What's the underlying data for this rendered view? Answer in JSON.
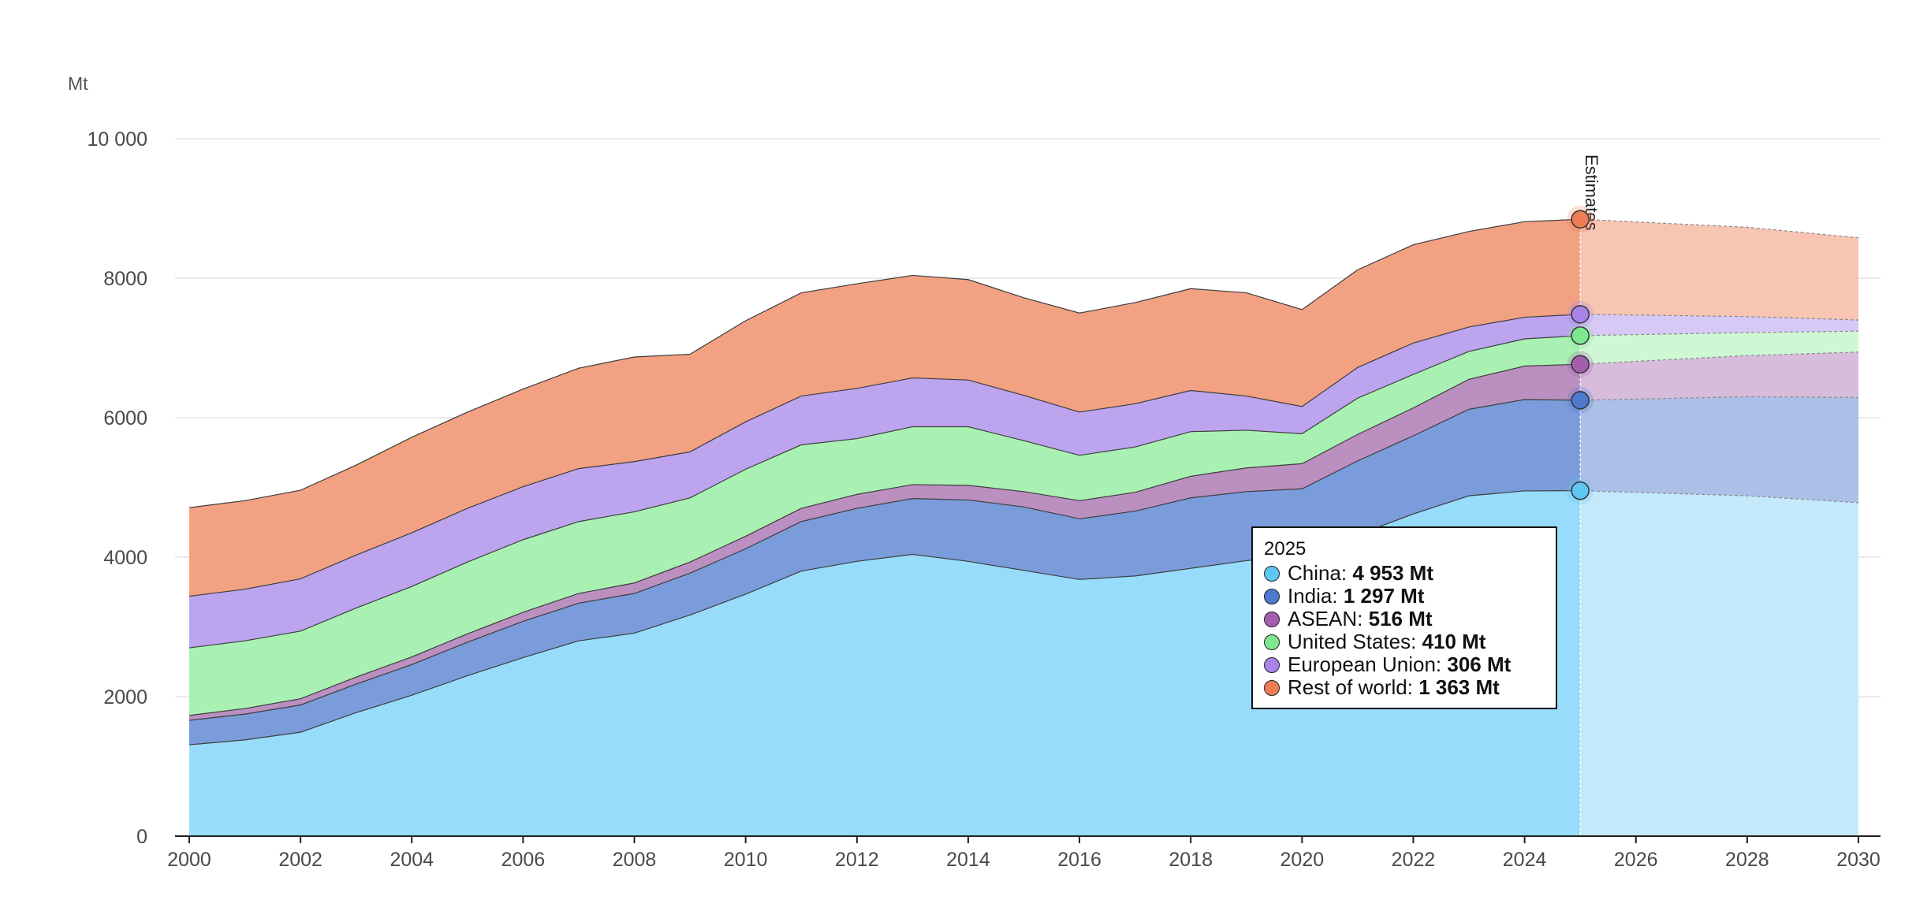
{
  "chart_data": {
    "type": "area",
    "stacked": true,
    "unit_label": "Mt",
    "x": [
      2000,
      2001,
      2002,
      2003,
      2004,
      2005,
      2006,
      2007,
      2008,
      2009,
      2010,
      2011,
      2012,
      2013,
      2014,
      2015,
      2016,
      2017,
      2018,
      2019,
      2020,
      2021,
      2022,
      2023,
      2024,
      2025
    ],
    "x_projection": [
      2025,
      2028,
      2030
    ],
    "xlim": [
      2000,
      2030
    ],
    "x_ticks": [
      "2000",
      "2002",
      "2004",
      "2006",
      "2008",
      "2010",
      "2012",
      "2014",
      "2016",
      "2018",
      "2020",
      "2022",
      "2024",
      "2026",
      "2028",
      "2030"
    ],
    "ylim": [
      0,
      10000
    ],
    "y_ticks": [
      0,
      2000,
      4000,
      6000,
      8000,
      10000
    ],
    "y_tick_labels": [
      "0",
      "2000",
      "4000",
      "6000",
      "8000",
      "10 000"
    ],
    "grid": true,
    "estimates_start": 2025,
    "estimates_label": "Estimates",
    "series": [
      {
        "name": "China",
        "color": "#97dcfa",
        "projection_color": "#c4e9fb",
        "values": [
          1310,
          1380,
          1490,
          1770,
          2020,
          2300,
          2560,
          2800,
          2910,
          3170,
          3470,
          3800,
          3940,
          4040,
          3940,
          3810,
          3680,
          3730,
          3840,
          3950,
          4020,
          4320,
          4620,
          4880,
          4950,
          4953
        ],
        "projection": [
          4953,
          4880,
          4780
        ]
      },
      {
        "name": "India",
        "color": "#7a9cda",
        "projection_color": "#acc0e7",
        "values": [
          350,
          370,
          390,
          410,
          440,
          480,
          520,
          540,
          570,
          600,
          650,
          710,
          760,
          800,
          880,
          910,
          870,
          930,
          1010,
          990,
          960,
          1060,
          1120,
          1240,
          1310,
          1297
        ],
        "projection": [
          1297,
          1420,
          1510
        ]
      },
      {
        "name": "ASEAN",
        "color": "#bb8fc0",
        "projection_color": "#d7bcdc",
        "values": [
          70,
          80,
          90,
          100,
          110,
          120,
          130,
          140,
          150,
          160,
          180,
          190,
          200,
          200,
          210,
          220,
          260,
          270,
          310,
          340,
          360,
          380,
          400,
          430,
          480,
          516
        ],
        "projection": [
          516,
          590,
          650
        ]
      },
      {
        "name": "United States",
        "color": "#a9f1b3",
        "projection_color": "#cef7d3",
        "values": [
          970,
          970,
          970,
          990,
          1010,
          1030,
          1040,
          1030,
          1020,
          920,
          960,
          910,
          800,
          830,
          840,
          730,
          650,
          650,
          640,
          540,
          430,
          520,
          480,
          400,
          390,
          410
        ],
        "projection": [
          410,
          330,
          300
        ]
      },
      {
        "name": "European Union",
        "color": "#bca4ee",
        "projection_color": "#d7c9f5",
        "values": [
          740,
          740,
          750,
          760,
          770,
          770,
          760,
          760,
          720,
          660,
          680,
          700,
          720,
          700,
          670,
          650,
          620,
          620,
          590,
          490,
          390,
          440,
          450,
          350,
          310,
          306
        ],
        "projection": [
          306,
          230,
          160
        ]
      },
      {
        "name": "Rest of world",
        "color": "#f2a183",
        "projection_color": "#f7c5b2",
        "values": [
          1270,
          1270,
          1270,
          1290,
          1370,
          1380,
          1400,
          1440,
          1500,
          1400,
          1450,
          1480,
          1500,
          1470,
          1440,
          1400,
          1420,
          1450,
          1460,
          1480,
          1390,
          1400,
          1410,
          1370,
          1370,
          1363
        ],
        "projection": [
          1363,
          1280,
          1180
        ]
      }
    ],
    "tooltip": {
      "year": "2025",
      "rows": [
        {
          "label": "China:",
          "value": "4 953 Mt",
          "color": "#5ec6f2"
        },
        {
          "label": "India:",
          "value": "1 297 Mt",
          "color": "#4f78cf"
        },
        {
          "label": "ASEAN:",
          "value": "516 Mt",
          "color": "#a35fad"
        },
        {
          "label": "United States:",
          "value": "410 Mt",
          "color": "#7ee891"
        },
        {
          "label": "European Union:",
          "value": "306 Mt",
          "color": "#a883ea"
        },
        {
          "label": "Rest of world:",
          "value": "1 363 Mt",
          "color": "#ee7c55"
        }
      ]
    }
  }
}
